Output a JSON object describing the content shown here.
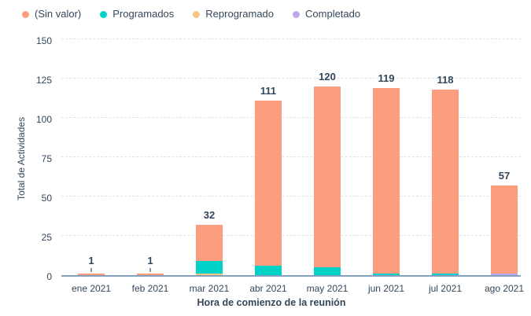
{
  "chart_data": {
    "type": "bar",
    "stacked": true,
    "title": "",
    "xlabel": "Hora de comienzo de la reunión",
    "ylabel": "Total de Actividades",
    "ylim": [
      0,
      150
    ],
    "yticks": [
      0,
      25,
      50,
      75,
      100,
      125,
      150
    ],
    "grid": "horizontal-dashed",
    "legend_position": "top-left",
    "categories": [
      "ene 2021",
      "feb 2021",
      "mar 2021",
      "abr 2021",
      "may 2021",
      "jun 2021",
      "jul 2021",
      "ago 2021"
    ],
    "series": [
      {
        "name": "(Sin valor)",
        "color": "#fb9d7e",
        "values": [
          1,
          1,
          23,
          105,
          115,
          118,
          117,
          56
        ]
      },
      {
        "name": "Programados",
        "color": "#00d2c8",
        "values": [
          0,
          0,
          8,
          6,
          5,
          1,
          1,
          0
        ]
      },
      {
        "name": "Reprogramado",
        "color": "#f8c583",
        "values": [
          0,
          0,
          1,
          0,
          0,
          0,
          0,
          0
        ]
      },
      {
        "name": "Completado",
        "color": "#bda9ea",
        "values": [
          0,
          0,
          0,
          0,
          0,
          0,
          0,
          1
        ]
      }
    ],
    "stack_order_bottom_up": [
      "Completado",
      "Reprogramado",
      "Programados",
      "(Sin valor)"
    ],
    "totals": [
      1,
      1,
      32,
      111,
      120,
      119,
      118,
      57
    ]
  },
  "colors": {
    "text": "#33475b",
    "axis_line": "#84a0bc",
    "gridline": "#dbe3ee",
    "connector": "#7c98b6",
    "background": "#ffffff"
  }
}
